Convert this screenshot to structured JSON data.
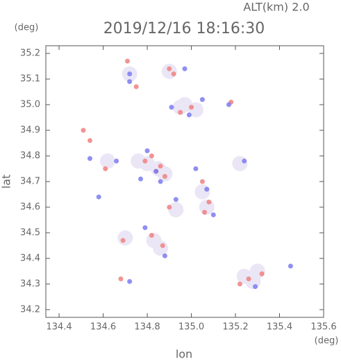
{
  "chart_data": {
    "type": "scatter",
    "header": "ALT(km) 2.0",
    "title": "2019/12/16 18:16:30",
    "y_unit": "(deg)",
    "x_unit": "(deg)",
    "ylabel": "lat",
    "xlabel": "lon",
    "xlim": [
      134.34,
      135.6
    ],
    "ylim": [
      34.17,
      35.23
    ],
    "xticks": [
      134.4,
      134.6,
      134.8,
      {
        "value": 135.0,
        "label": "135.0"
      },
      135.2,
      135.4,
      135.6
    ],
    "yticks": [
      34.2,
      34.3,
      34.4,
      34.5,
      34.6,
      34.7,
      34.8,
      34.9,
      {
        "value": 35.0,
        "label": "35.0"
      },
      35.1,
      35.2
    ],
    "series": [
      {
        "color": "#ebe6f5",
        "x": [
          134.72,
          134.9,
          134.97,
          134.95,
          135.02,
          134.8,
          134.85,
          134.88,
          134.76,
          135.05,
          135.07,
          134.93,
          134.83,
          134.86,
          135.24,
          135.28,
          135.3,
          134.7,
          134.62,
          135.22
        ],
        "y": [
          35.12,
          35.13,
          35.0,
          34.99,
          34.98,
          34.77,
          34.75,
          34.73,
          34.78,
          34.66,
          34.6,
          34.59,
          34.47,
          34.44,
          34.33,
          34.31,
          34.35,
          34.48,
          34.78,
          34.77
        ]
      },
      {
        "color": "#f08080",
        "x": [
          134.71,
          134.9,
          134.51,
          134.54,
          134.82,
          134.86,
          134.88,
          134.79,
          135.05,
          135.08,
          134.9,
          134.82,
          134.87,
          134.69,
          135.22,
          135.26,
          135.32,
          134.68,
          135.18,
          134.95,
          134.92,
          134.84,
          135.06,
          134.61,
          134.75,
          135.0
        ],
        "y": [
          35.17,
          35.14,
          34.9,
          34.86,
          34.8,
          34.76,
          34.72,
          34.78,
          34.7,
          34.62,
          34.6,
          34.49,
          34.45,
          34.47,
          34.3,
          34.32,
          34.34,
          34.32,
          35.01,
          34.97,
          35.12,
          34.74,
          34.58,
          34.75,
          35.07,
          34.99
        ]
      },
      {
        "color": "#7b7bf0",
        "x": [
          134.72,
          134.97,
          134.54,
          134.8,
          134.84,
          134.77,
          135.07,
          135.1,
          134.93,
          134.79,
          134.88,
          135.45,
          135.29,
          134.72,
          135.05,
          134.91,
          134.99,
          135.17,
          134.72,
          135.02,
          134.86,
          135.24,
          134.66,
          134.58
        ],
        "y": [
          35.09,
          35.14,
          34.79,
          34.82,
          34.74,
          34.71,
          34.67,
          34.57,
          34.63,
          34.52,
          34.41,
          34.37,
          34.29,
          34.31,
          35.02,
          34.99,
          34.96,
          35.0,
          35.12,
          34.75,
          34.7,
          34.78,
          34.78,
          34.64
        ]
      }
    ]
  }
}
